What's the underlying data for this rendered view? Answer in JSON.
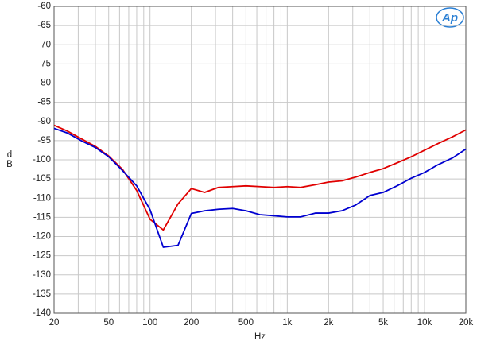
{
  "chart_data": {
    "type": "line",
    "logo": "Ap",
    "xlabel": "Hz",
    "ylabel": "dB",
    "xscale": "log",
    "grid": true,
    "x": [
      20,
      25,
      31.5,
      40,
      50,
      63,
      80,
      100,
      125,
      160,
      200,
      250,
      315,
      400,
      500,
      630,
      800,
      1000,
      1250,
      1600,
      2000,
      2500,
      3150,
      4000,
      5000,
      6300,
      8000,
      10000,
      12500,
      16000,
      20000
    ],
    "series": [
      {
        "name": "Red",
        "color": "#e00000",
        "values": [
          -91,
          -92.5,
          -94.5,
          -96.5,
          -99,
          -102.5,
          -108,
          -115.5,
          -118.3,
          -111.5,
          -107.5,
          -108.5,
          -107.2,
          -107,
          -106.8,
          -107,
          -107.2,
          -107,
          -107.2,
          -106.5,
          -105.8,
          -105.5,
          -104.5,
          -103.3,
          -102.3,
          -100.8,
          -99.2,
          -97.5,
          -95.8,
          -94,
          -92.2
        ]
      },
      {
        "name": "Blue",
        "color": "#0000d0",
        "values": [
          -91.8,
          -93,
          -95,
          -96.8,
          -99.2,
          -102.8,
          -106.8,
          -113,
          -122.8,
          -122.3,
          -114,
          -113.3,
          -112.9,
          -112.7,
          -113.3,
          -114.3,
          -114.6,
          -114.9,
          -114.9,
          -113.9,
          -113.9,
          -113.3,
          -111.8,
          -109.3,
          -108.5,
          -106.8,
          -104.8,
          -103.3,
          -101.3,
          -99.5,
          -97.2
        ]
      }
    ],
    "xlim": [
      20,
      20000
    ],
    "xticks": [
      20,
      50,
      100,
      200,
      500,
      {
        "value": 1000,
        "label": "1k"
      },
      {
        "value": 2000,
        "label": "2k"
      },
      {
        "value": 5000,
        "label": "5k"
      },
      {
        "value": 10000,
        "label": "10k"
      },
      {
        "value": 20000,
        "label": "20k"
      }
    ],
    "x_minor_ticks": [
      30,
      40,
      60,
      70,
      80,
      90,
      300,
      400,
      600,
      700,
      800,
      900,
      3000,
      4000,
      6000,
      7000,
      8000,
      9000
    ],
    "ylim": [
      -140,
      -60
    ],
    "yticks": [
      -140,
      -135,
      -130,
      -125,
      -120,
      -115,
      -110,
      -105,
      -100,
      -95,
      -90,
      -85,
      -80,
      -75,
      -70,
      -65,
      -60
    ]
  }
}
